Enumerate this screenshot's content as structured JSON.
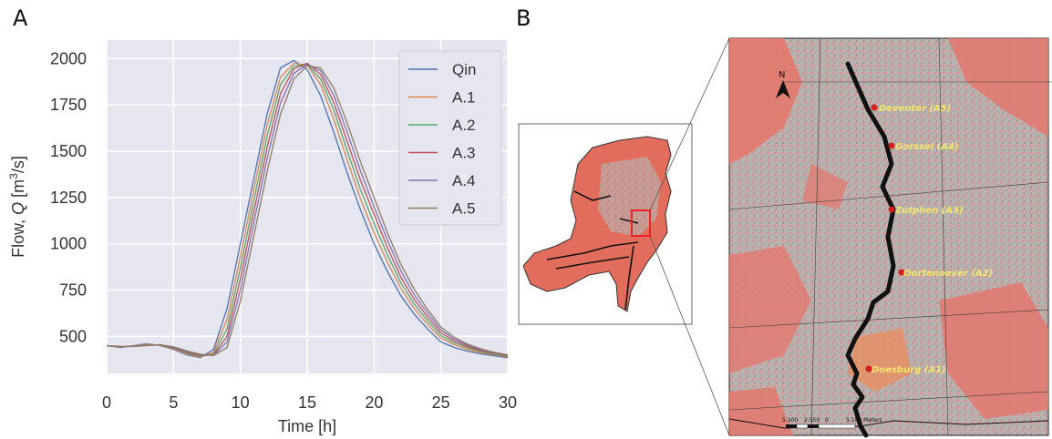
{
  "panels": {
    "a_label": "A",
    "b_label": "B"
  },
  "chart_data": {
    "type": "line",
    "xlabel": "Time [h]",
    "ylabel": "Flow, Q [m³/s]",
    "xlim": [
      0,
      30
    ],
    "ylim": [
      300,
      2100
    ],
    "xticks": [
      0,
      5,
      10,
      15,
      20,
      25,
      30
    ],
    "yticks": [
      500,
      750,
      1000,
      1250,
      1500,
      1750,
      2000
    ],
    "grid": true,
    "legend_position": "top-right",
    "x": [
      0,
      1,
      2,
      3,
      4,
      5,
      6,
      7,
      8,
      9,
      10,
      11,
      12,
      13,
      14,
      15,
      16,
      17,
      18,
      19,
      20,
      21,
      22,
      23,
      24,
      25,
      26,
      27,
      28,
      29,
      30
    ],
    "series": [
      {
        "name": "Qin",
        "color": "#4c72b0",
        "values": [
          450,
          440,
          450,
          460,
          450,
          430,
          400,
          385,
          430,
          650,
          1000,
          1350,
          1700,
          1950,
          1990,
          1940,
          1800,
          1600,
          1380,
          1180,
          1000,
          850,
          720,
          620,
          540,
          470,
          440,
          420,
          405,
          395,
          385
        ]
      },
      {
        "name": "A.1",
        "color": "#dd8452",
        "values": [
          450,
          442,
          448,
          457,
          452,
          433,
          405,
          388,
          415,
          590,
          930,
          1290,
          1640,
          1900,
          1975,
          1965,
          1860,
          1670,
          1450,
          1240,
          1060,
          900,
          760,
          650,
          565,
          490,
          455,
          430,
          412,
          400,
          390
        ]
      },
      {
        "name": "A.2",
        "color": "#55a868",
        "values": [
          450,
          443,
          447,
          455,
          453,
          436,
          410,
          392,
          405,
          540,
          870,
          1230,
          1580,
          1860,
          1960,
          1970,
          1890,
          1720,
          1500,
          1290,
          1110,
          940,
          790,
          675,
          585,
          505,
          465,
          438,
          418,
          404,
          393
        ]
      },
      {
        "name": "A.3",
        "color": "#c44e52",
        "values": [
          450,
          444,
          446,
          453,
          454,
          439,
          414,
          396,
          400,
          500,
          810,
          1170,
          1520,
          1810,
          1945,
          1975,
          1915,
          1760,
          1550,
          1340,
          1160,
          980,
          820,
          700,
          605,
          520,
          475,
          445,
          423,
          408,
          396
        ]
      },
      {
        "name": "A.4",
        "color": "#8172b3",
        "values": [
          450,
          445,
          446,
          451,
          454,
          441,
          418,
          400,
          398,
          470,
          750,
          1110,
          1460,
          1760,
          1920,
          1970,
          1935,
          1800,
          1600,
          1390,
          1200,
          1020,
          855,
          725,
          625,
          535,
          485,
          452,
          428,
          411,
          398
        ]
      },
      {
        "name": "A.5",
        "color": "#937860",
        "values": [
          450,
          446,
          445,
          450,
          455,
          444,
          422,
          404,
          397,
          440,
          690,
          1040,
          1390,
          1700,
          1890,
          1960,
          1950,
          1840,
          1650,
          1440,
          1250,
          1060,
          890,
          755,
          645,
          550,
          495,
          458,
          432,
          414,
          400
        ]
      }
    ]
  },
  "map": {
    "north_label": "N",
    "locations": [
      "Deventer (A5)",
      "Gorssel (A4)",
      "Zutphen (A3)",
      "Oortenoever (A2)",
      "Doesburg (A1)"
    ],
    "scale_labels": [
      "5.100",
      "2.550",
      "0",
      "5.100 Meters"
    ]
  }
}
